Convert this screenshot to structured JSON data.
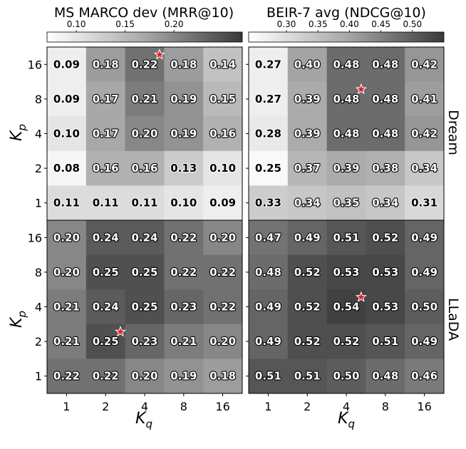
{
  "chart_data": {
    "type": "heatmap",
    "x_categories": [
      "1",
      "2",
      "4",
      "8",
      "16"
    ],
    "y_categories": [
      "1",
      "2",
      "4",
      "8",
      "16"
    ],
    "xlabel": "K_q",
    "ylabel": "K_p",
    "colormap": "Greys",
    "best_marker": "red-star",
    "columns": [
      {
        "title": "MS MARCO dev (MRR@10)",
        "colorbar": {
          "min": 0.07,
          "max": 0.27,
          "ticks": [
            "0.10",
            "0.15",
            "0.20"
          ],
          "tick_values": [
            0.1,
            0.15,
            0.2
          ]
        }
      },
      {
        "title": "BEIR-7 avg (NDCG@10)",
        "colorbar": {
          "min": 0.24,
          "max": 0.55,
          "ticks": [
            "0.30",
            "0.35",
            "0.40",
            "0.45",
            "0.50"
          ],
          "tick_values": [
            0.3,
            0.35,
            0.4,
            0.45,
            0.5
          ]
        }
      }
    ],
    "rows": [
      {
        "label": "Dream"
      },
      {
        "label": "LLaDA"
      }
    ],
    "panels": [
      {
        "row": 0,
        "col": 0,
        "values": [
          [
            "0.09",
            "0.18",
            "0.22",
            "0.18",
            "0.14"
          ],
          [
            "0.09",
            "0.17",
            "0.21",
            "0.19",
            "0.15"
          ],
          [
            "0.10",
            "0.17",
            "0.20",
            "0.19",
            "0.16"
          ],
          [
            "0.08",
            "0.16",
            "0.16",
            "0.13",
            "0.10"
          ],
          [
            "0.11",
            "0.11",
            "0.11",
            "0.10",
            "0.09"
          ]
        ],
        "best": {
          "kp": "16",
          "kq": "4"
        }
      },
      {
        "row": 0,
        "col": 1,
        "values": [
          [
            "0.27",
            "0.40",
            "0.48",
            "0.48",
            "0.42"
          ],
          [
            "0.27",
            "0.39",
            "0.48",
            "0.48",
            "0.41"
          ],
          [
            "0.28",
            "0.39",
            "0.48",
            "0.48",
            "0.42"
          ],
          [
            "0.25",
            "0.37",
            "0.39",
            "0.38",
            "0.34"
          ],
          [
            "0.33",
            "0.34",
            "0.35",
            "0.34",
            "0.31"
          ]
        ],
        "best": {
          "kp": "8",
          "kq": "4"
        }
      },
      {
        "row": 1,
        "col": 0,
        "values": [
          [
            "0.20",
            "0.24",
            "0.24",
            "0.22",
            "0.20"
          ],
          [
            "0.20",
            "0.25",
            "0.25",
            "0.22",
            "0.22"
          ],
          [
            "0.21",
            "0.24",
            "0.25",
            "0.23",
            "0.22"
          ],
          [
            "0.21",
            "0.25",
            "0.23",
            "0.21",
            "0.20"
          ],
          [
            "0.22",
            "0.22",
            "0.20",
            "0.19",
            "0.18"
          ]
        ],
        "best": {
          "kp": "2",
          "kq": "2"
        }
      },
      {
        "row": 1,
        "col": 1,
        "values": [
          [
            "0.47",
            "0.49",
            "0.51",
            "0.52",
            "0.49"
          ],
          [
            "0.48",
            "0.52",
            "0.53",
            "0.53",
            "0.49"
          ],
          [
            "0.49",
            "0.52",
            "0.54",
            "0.53",
            "0.50"
          ],
          [
            "0.49",
            "0.52",
            "0.52",
            "0.51",
            "0.49"
          ],
          [
            "0.51",
            "0.51",
            "0.50",
            "0.48",
            "0.46"
          ]
        ],
        "best": {
          "kp": "4",
          "kq": "4"
        }
      }
    ]
  }
}
